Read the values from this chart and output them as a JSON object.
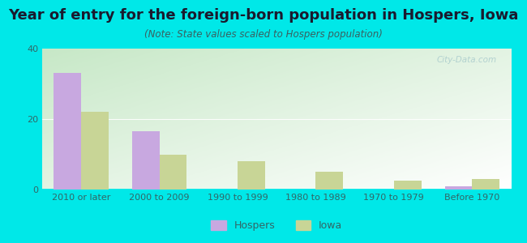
{
  "title": "Year of entry for the foreign-born population in Hospers, Iowa",
  "subtitle": "(Note: State values scaled to Hospers population)",
  "categories": [
    "2010 or later",
    "2000 to 2009",
    "1990 to 1999",
    "1980 to 1989",
    "1970 to 1979",
    "Before 1970"
  ],
  "hospers_values": [
    33,
    16.5,
    0,
    0,
    0,
    1
  ],
  "iowa_values": [
    22,
    10,
    8,
    5,
    2.5,
    3
  ],
  "hospers_color": "#c8a8e0",
  "iowa_color": "#c8d596",
  "bg_outer": "#00e8e8",
  "ylim": [
    0,
    40
  ],
  "yticks": [
    0,
    20,
    40
  ],
  "bar_width": 0.35,
  "legend_labels": [
    "Hospers",
    "Iowa"
  ],
  "title_fontsize": 13,
  "subtitle_fontsize": 8.5,
  "tick_fontsize": 8,
  "title_color": "#1a1a2e",
  "subtitle_color": "#3a6060",
  "tick_color": "#336666",
  "watermark_color": "#aacccc",
  "grid_color": "#e0eee0"
}
